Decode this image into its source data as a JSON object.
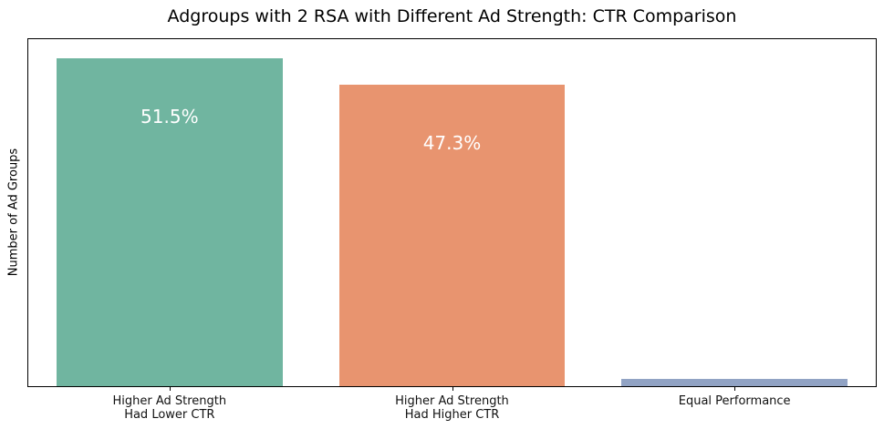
{
  "chart_data": {
    "type": "bar",
    "title": "Adgroups with 2 RSA with Different Ad Strength: CTR Comparison",
    "xlabel": "",
    "ylabel": "Number of Ad Groups",
    "categories": [
      "Higher Ad Strength\nHad Lower CTR",
      "Higher Ad Strength\nHad Higher CTR",
      "Equal Performance"
    ],
    "values": [
      51.5,
      47.3,
      1.2
    ],
    "bar_labels": [
      "51.5%",
      "47.3%",
      ""
    ],
    "bar_colors": [
      "#70b5a0",
      "#e8946f",
      "#91a3c4"
    ],
    "bar_label_color": "#ffffff",
    "ylim": [
      0,
      54.5
    ],
    "bar_width_fraction": 0.8,
    "grid": false,
    "legend_position": "none",
    "y_ticks_visible": false,
    "spine_color": "#000000"
  }
}
